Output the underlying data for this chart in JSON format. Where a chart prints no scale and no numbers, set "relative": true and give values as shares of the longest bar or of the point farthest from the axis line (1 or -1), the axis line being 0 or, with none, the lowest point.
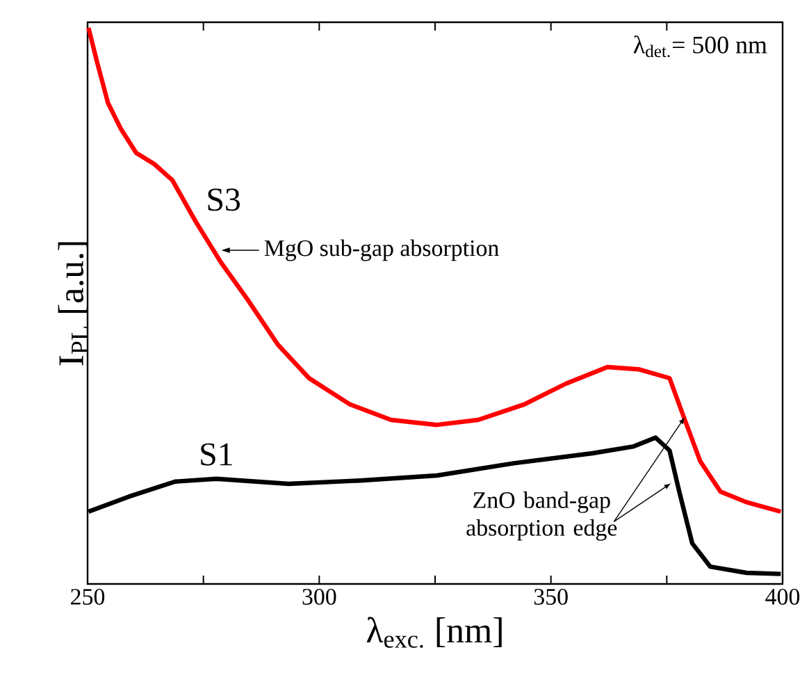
{
  "chart_data": {
    "type": "line",
    "relative": true,
    "xlabel": "λ$_{exc.}$ [nm]",
    "ylabel": "I$_{PL}$ [a.u.]",
    "xlim": [
      250,
      400
    ],
    "xticks": [
      250,
      {
        "value": 275,
        "label": null
      },
      300,
      {
        "value": 325,
        "label": null
      },
      350,
      {
        "value": 375,
        "label": null
      },
      400
    ],
    "marker": "none",
    "line_style": "solid",
    "annotations": [
      "λ$_{det.}$= 500 nm",
      {
        "text": "MgO sub-gap absorption",
        "x": 278,
        "y": 0.6
      },
      {
        "text": "ZnO band-gap absorption edge",
        "x": 378.9,
        "y": 0.3
      }
    ],
    "series": [
      {
        "name": "S3",
        "color": "#ff0000",
        "x": [
          250.2,
          252,
          254.4,
          257.2,
          260.5,
          264.4,
          268.3,
          273.3,
          278.8,
          284.4,
          291.1,
          297.8,
          306.6,
          315.5,
          325.4,
          334.3,
          344.3,
          353.2,
          362.2,
          368.9,
          375.6,
          378.9,
          382.2,
          386.6,
          392.2,
          399.6
        ],
        "values": [
          1.0,
          0.94,
          0.865,
          0.818,
          0.775,
          0.755,
          0.726,
          0.652,
          0.578,
          0.513,
          0.43,
          0.37,
          0.323,
          0.295,
          0.286,
          0.295,
          0.323,
          0.36,
          0.39,
          0.386,
          0.37,
          0.295,
          0.221,
          0.166,
          0.147,
          0.13
        ]
      },
      {
        "name": "S1",
        "color": "#000000",
        "x": [
          250.2,
          258.9,
          268.9,
          277.8,
          293.4,
          308.9,
          325.4,
          342,
          359,
          367.7,
          372.6,
          375.6,
          377.7,
          380.5,
          384.4,
          392.2,
          399.6
        ],
        "values": [
          0.13,
          0.157,
          0.184,
          0.189,
          0.18,
          0.186,
          0.195,
          0.217,
          0.235,
          0.247,
          0.263,
          0.24,
          0.166,
          0.073,
          0.031,
          0.02,
          0.018
        ]
      }
    ]
  }
}
